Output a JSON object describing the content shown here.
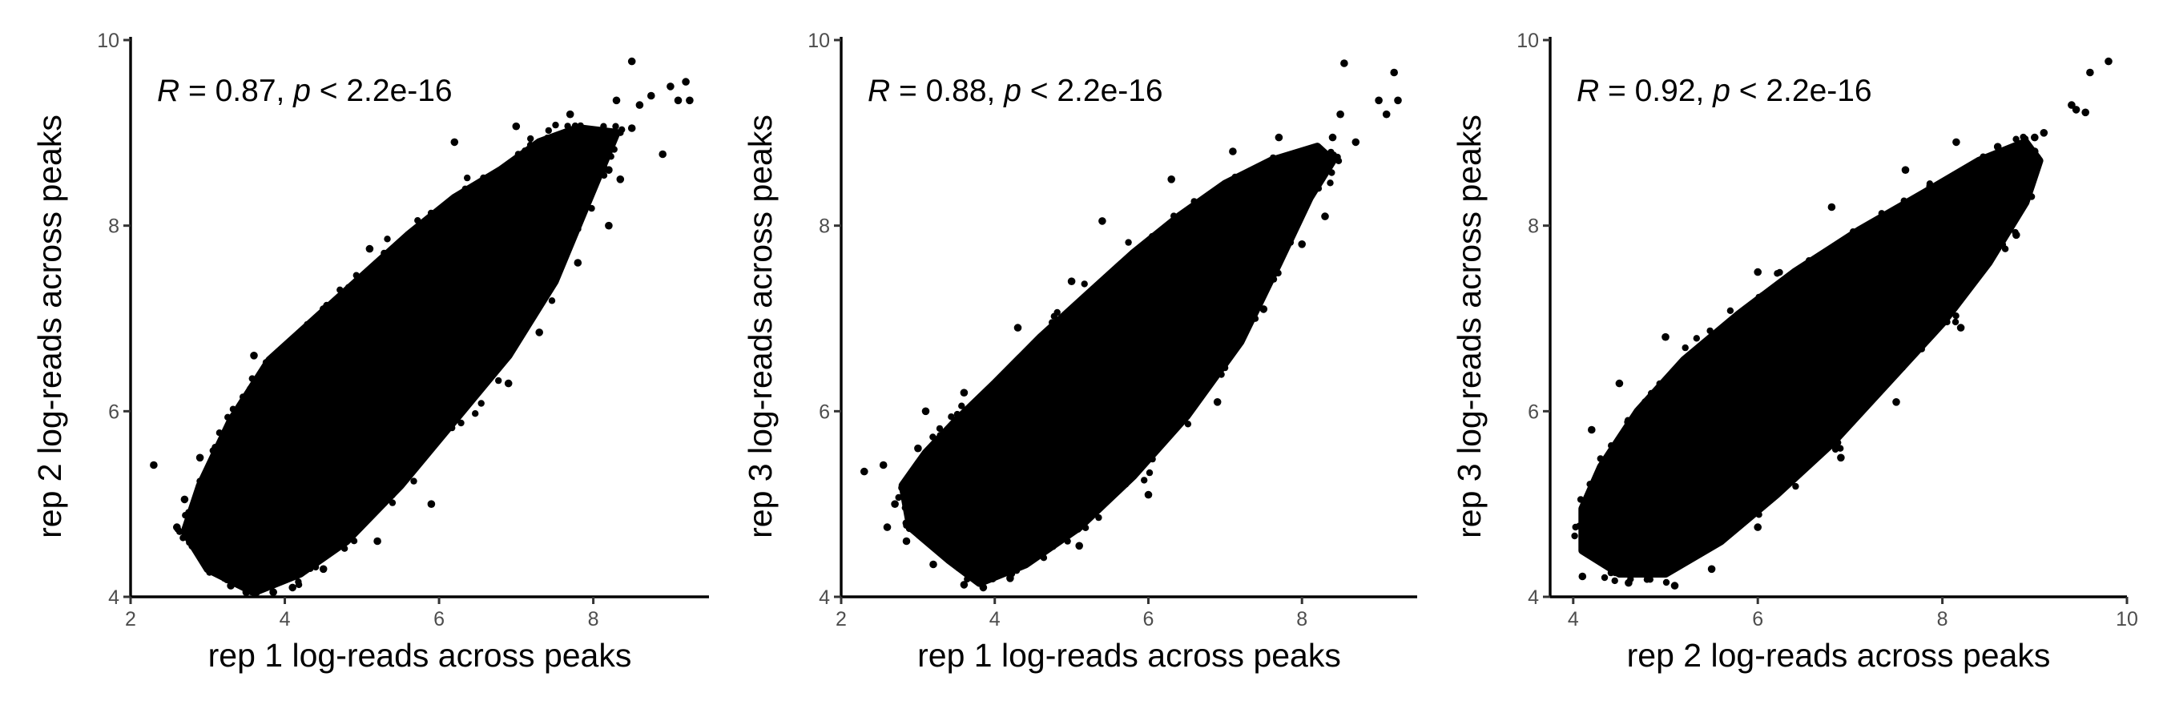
{
  "figure": {
    "background": "#ffffff",
    "point_color": "#000000"
  },
  "chart_data": [
    {
      "type": "scatter",
      "xlabel": "rep 1 log-reads across peaks",
      "ylabel": "rep 2 log-reads across peaks",
      "xlim": [
        2,
        9.5
      ],
      "ylim": [
        4,
        10
      ],
      "xticks": [
        2,
        4,
        6,
        8
      ],
      "yticks": [
        4,
        6,
        8,
        10
      ],
      "grid": false,
      "annotation": {
        "r_symbol": "R",
        "r_text": " = 0.87, ",
        "p_symbol": "p",
        "p_text": " < 2.2e-16"
      },
      "correlation": 0.87,
      "density_region": [
        [
          3.0,
          4.3
        ],
        [
          3.6,
          4.05
        ],
        [
          4.2,
          4.25
        ],
        [
          4.8,
          4.6
        ],
        [
          5.5,
          5.2
        ],
        [
          6.2,
          5.9
        ],
        [
          6.9,
          6.6
        ],
        [
          7.5,
          7.4
        ],
        [
          7.9,
          8.2
        ],
        [
          8.2,
          8.8
        ],
        [
          8.3,
          9.0
        ],
        [
          7.8,
          9.05
        ],
        [
          7.3,
          8.9
        ],
        [
          6.8,
          8.6
        ],
        [
          6.2,
          8.3
        ],
        [
          5.6,
          7.9
        ],
        [
          5.0,
          7.45
        ],
        [
          4.4,
          7.0
        ],
        [
          3.8,
          6.55
        ],
        [
          3.3,
          5.9
        ],
        [
          2.9,
          5.2
        ],
        [
          2.7,
          4.7
        ]
      ],
      "points": [
        [
          2.3,
          5.42
        ],
        [
          2.6,
          4.75
        ],
        [
          2.7,
          5.05
        ],
        [
          2.8,
          4.55
        ],
        [
          2.9,
          5.5
        ],
        [
          3.1,
          4.3
        ],
        [
          3.3,
          4.12
        ],
        [
          3.5,
          4.05
        ],
        [
          3.85,
          4.05
        ],
        [
          4.1,
          4.1
        ],
        [
          4.5,
          4.3
        ],
        [
          5.2,
          4.6
        ],
        [
          5.9,
          5.0
        ],
        [
          6.9,
          6.3
        ],
        [
          7.3,
          6.85
        ],
        [
          7.8,
          7.6
        ],
        [
          8.2,
          8.0
        ],
        [
          8.35,
          8.5
        ],
        [
          8.5,
          9.05
        ],
        [
          8.5,
          9.77
        ],
        [
          8.6,
          9.3
        ],
        [
          8.75,
          9.4
        ],
        [
          8.9,
          8.77
        ],
        [
          9.0,
          9.5
        ],
        [
          9.1,
          9.35
        ],
        [
          9.2,
          9.55
        ],
        [
          9.25,
          9.35
        ],
        [
          3.6,
          6.6
        ],
        [
          4.0,
          6.55
        ],
        [
          4.5,
          7.1
        ],
        [
          5.1,
          7.75
        ],
        [
          6.2,
          8.9
        ],
        [
          7.0,
          9.07
        ],
        [
          7.7,
          9.2
        ],
        [
          8.3,
          9.35
        ],
        [
          8.2,
          8.6
        ]
      ]
    },
    {
      "type": "scatter",
      "xlabel": "rep 1 log-reads across peaks",
      "ylabel": "rep 3 log-reads across peaks",
      "xlim": [
        2,
        9.5
      ],
      "ylim": [
        4,
        10
      ],
      "xticks": [
        2,
        4,
        6,
        8
      ],
      "yticks": [
        4,
        6,
        8,
        10
      ],
      "grid": false,
      "annotation": {
        "r_symbol": "R",
        "r_text": " = 0.88, ",
        "p_symbol": "p",
        "p_text": " < 2.2e-16"
      },
      "correlation": 0.88,
      "density_region": [
        [
          2.9,
          4.75
        ],
        [
          3.4,
          4.4
        ],
        [
          3.8,
          4.15
        ],
        [
          4.4,
          4.35
        ],
        [
          5.1,
          4.75
        ],
        [
          5.8,
          5.3
        ],
        [
          6.5,
          5.95
        ],
        [
          7.2,
          6.75
        ],
        [
          7.7,
          7.6
        ],
        [
          8.1,
          8.3
        ],
        [
          8.4,
          8.7
        ],
        [
          8.2,
          8.85
        ],
        [
          7.6,
          8.7
        ],
        [
          7.0,
          8.45
        ],
        [
          6.4,
          8.1
        ],
        [
          5.8,
          7.7
        ],
        [
          5.2,
          7.25
        ],
        [
          4.6,
          6.8
        ],
        [
          4.0,
          6.3
        ],
        [
          3.5,
          5.9
        ],
        [
          3.1,
          5.55
        ],
        [
          2.8,
          5.2
        ]
      ],
      "points": [
        [
          2.3,
          5.35
        ],
        [
          2.55,
          5.42
        ],
        [
          2.6,
          4.75
        ],
        [
          2.7,
          5.0
        ],
        [
          2.85,
          4.6
        ],
        [
          3.0,
          5.6
        ],
        [
          3.2,
          4.35
        ],
        [
          3.6,
          4.13
        ],
        [
          3.85,
          4.1
        ],
        [
          4.2,
          4.2
        ],
        [
          5.1,
          4.55
        ],
        [
          6.0,
          5.1
        ],
        [
          6.9,
          6.1
        ],
        [
          7.5,
          7.1
        ],
        [
          8.0,
          7.8
        ],
        [
          8.3,
          8.1
        ],
        [
          8.4,
          8.95
        ],
        [
          8.5,
          9.2
        ],
        [
          8.55,
          9.75
        ],
        [
          8.7,
          8.9
        ],
        [
          9.0,
          9.35
        ],
        [
          9.1,
          9.2
        ],
        [
          9.2,
          9.65
        ],
        [
          9.25,
          9.35
        ],
        [
          5.4,
          8.05
        ],
        [
          3.1,
          6.0
        ],
        [
          3.6,
          6.2
        ],
        [
          4.3,
          6.9
        ],
        [
          5.0,
          7.4
        ],
        [
          6.3,
          8.5
        ],
        [
          7.1,
          8.8
        ],
        [
          7.7,
          8.95
        ],
        [
          8.0,
          8.6
        ]
      ]
    },
    {
      "type": "scatter",
      "xlabel": "rep 2 log-reads across peaks",
      "ylabel": "rep 3 log-reads across peaks",
      "xlim": [
        3.75,
        10
      ],
      "ylim": [
        4,
        10
      ],
      "xticks": [
        4,
        6,
        8,
        10
      ],
      "yticks": [
        4,
        6,
        8,
        10
      ],
      "grid": false,
      "annotation": {
        "r_symbol": "R",
        "r_text": " = 0.92, ",
        "p_symbol": "p",
        "p_text": " < 2.2e-16"
      },
      "correlation": 0.92,
      "density_region": [
        [
          4.1,
          4.5
        ],
        [
          4.5,
          4.25
        ],
        [
          5.0,
          4.25
        ],
        [
          5.6,
          4.6
        ],
        [
          6.2,
          5.1
        ],
        [
          6.8,
          5.65
        ],
        [
          7.4,
          6.3
        ],
        [
          8.0,
          6.95
        ],
        [
          8.5,
          7.6
        ],
        [
          8.9,
          8.25
        ],
        [
          9.05,
          8.7
        ],
        [
          8.9,
          8.9
        ],
        [
          8.4,
          8.7
        ],
        [
          7.8,
          8.35
        ],
        [
          7.1,
          7.95
        ],
        [
          6.4,
          7.5
        ],
        [
          5.8,
          7.05
        ],
        [
          5.2,
          6.55
        ],
        [
          4.7,
          6.0
        ],
        [
          4.3,
          5.4
        ],
        [
          4.1,
          4.95
        ]
      ],
      "points": [
        [
          4.1,
          4.22
        ],
        [
          4.15,
          4.55
        ],
        [
          4.3,
          4.95
        ],
        [
          4.6,
          4.15
        ],
        [
          5.1,
          4.12
        ],
        [
          5.5,
          4.3
        ],
        [
          6.0,
          4.75
        ],
        [
          6.9,
          5.5
        ],
        [
          7.5,
          6.1
        ],
        [
          8.2,
          6.9
        ],
        [
          8.8,
          7.9
        ],
        [
          9.0,
          8.8
        ],
        [
          9.1,
          9.0
        ],
        [
          9.4,
          9.3
        ],
        [
          9.45,
          9.25
        ],
        [
          9.55,
          9.22
        ],
        [
          9.6,
          9.65
        ],
        [
          9.8,
          9.77
        ],
        [
          8.15,
          8.9
        ],
        [
          7.6,
          8.6
        ],
        [
          6.0,
          7.5
        ],
        [
          5.0,
          6.8
        ],
        [
          4.5,
          6.3
        ],
        [
          4.2,
          5.8
        ],
        [
          6.8,
          8.2
        ],
        [
          9.0,
          8.95
        ],
        [
          8.6,
          8.85
        ]
      ]
    }
  ]
}
